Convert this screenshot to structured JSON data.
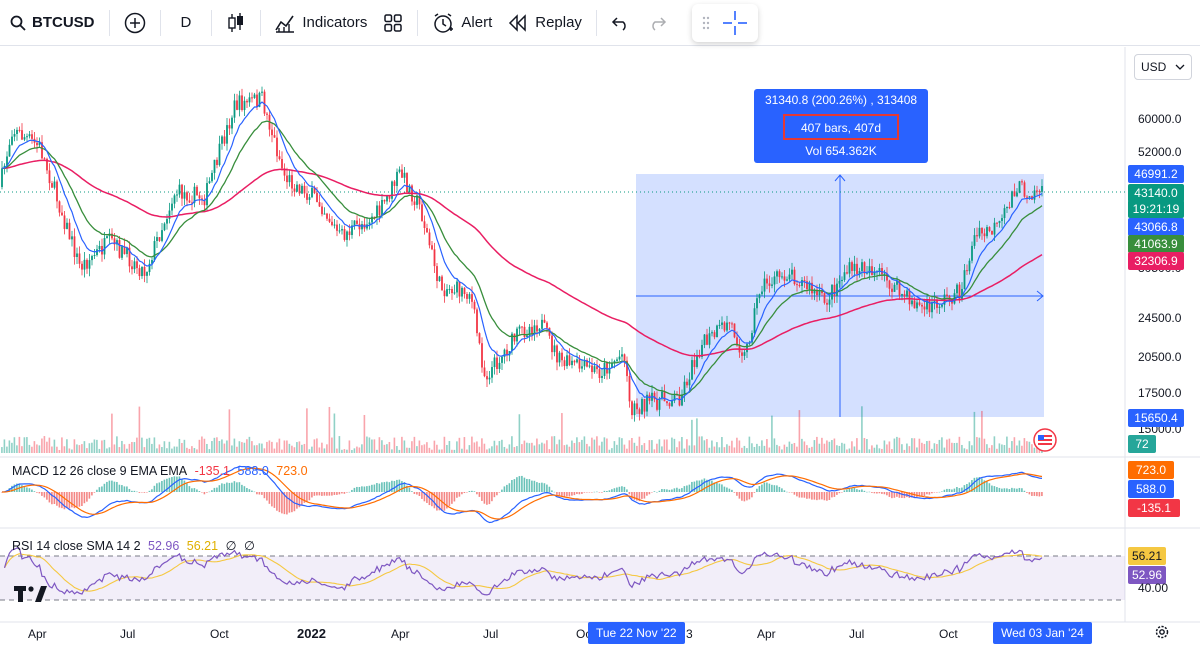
{
  "toolbar": {
    "symbol": "BTCUSD",
    "interval": "D",
    "indicators_label": "Indicators",
    "alert_label": "Alert",
    "replay_label": "Replay"
  },
  "chart": {
    "currency": "USD",
    "measure": {
      "line1": "31340.8 (200.26%) , 313408",
      "line2": "407 bars, 407d",
      "line3": "Vol 654.362K"
    },
    "price_axis_labels": [
      "60000.0",
      "52000.0",
      "30500.0",
      "24500.0",
      "20500.0",
      "17500.0",
      "15000.0"
    ],
    "price_tags": [
      {
        "text": "46991.2",
        "color": "#2962ff"
      },
      {
        "text": "43140.0",
        "color": "#089981"
      },
      {
        "text": "19:21:19",
        "color": "#089981"
      },
      {
        "text": "43066.8",
        "color": "#2962ff"
      },
      {
        "text": "41063.9",
        "color": "#388e3c"
      },
      {
        "text": "32306.9",
        "color": "#e91e63"
      },
      {
        "text": "15650.4",
        "color": "#2962ff"
      },
      {
        "text": "72",
        "color": "#26a69a"
      }
    ],
    "macd": {
      "label": "MACD 12 26 close 9 EMA EMA",
      "hist": "-135.1",
      "macd_val": "588.0",
      "signal": "723.0",
      "tags": [
        {
          "text": "723.0",
          "color": "#ff6d00"
        },
        {
          "text": "588.0",
          "color": "#2962ff"
        },
        {
          "text": "-135.1",
          "color": "#f23645"
        }
      ]
    },
    "rsi": {
      "label": "RSI 14 close SMA 14 2",
      "rsi_val": "52.96",
      "sma_val": "56.21",
      "extra1": "∅",
      "extra2": "∅",
      "axis_label": "40.00",
      "tags": [
        {
          "text": "56.21",
          "color": "#f5c842",
          "text_color": "#131722"
        },
        {
          "text": "52.96",
          "color": "#7e57c2",
          "text_color": "#ffffff"
        }
      ]
    },
    "x_labels": [
      "Apr",
      "Jul",
      "Oct",
      "2022",
      "Apr",
      "Jul",
      "Oc",
      "3",
      "Apr",
      "Jul",
      "Oct"
    ],
    "date_start": "Tue 22 Nov '22",
    "date_end": "Wed 03 Jan '24"
  },
  "colors": {
    "ema_fast": "#2962ff",
    "ema_mid": "#388e3c",
    "ema_slow": "#e91e63",
    "candle_up": "#089981",
    "candle_down": "#f23645",
    "range_fill": "#2962ff",
    "rsi": "#7e57c2"
  },
  "icons": [
    "search-icon",
    "plus-circle-icon",
    "candles-icon",
    "indicators-icon",
    "layout-grid-icon",
    "alert-clock-icon",
    "replay-icon",
    "undo-icon",
    "redo-icon",
    "crosshair-icon",
    "tradingview-logo",
    "us-flag-icon",
    "gear-icon"
  ]
}
